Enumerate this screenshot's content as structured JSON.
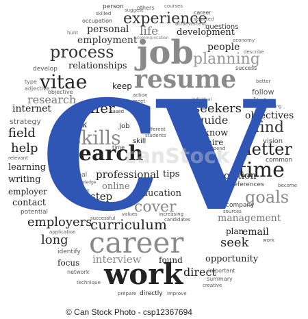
{
  "cv": "CV",
  "words": {
    "person": "person",
    "others": "others",
    "courses": "courses",
    "skilled": "skilled",
    "suggest": "suggest",
    "career_sm": "career",
    "selected": "selected",
    "occupation": "occupation",
    "experience": "experience",
    "life": "life",
    "achievement": "achievement",
    "development": "development",
    "questions": "questions",
    "personal": "personal",
    "employment": "employment",
    "hunt": "hunt",
    "communication": "communication",
    "people": "people",
    "economy": "economy",
    "process": "process",
    "job": "job",
    "planning": "planning",
    "describe": "describe",
    "develop": "develop",
    "relationships": "relationships",
    "success": "success",
    "vitae": "vitae",
    "resume": "resume",
    "keep": "keep",
    "type": "type",
    "adjective": "adjective",
    "objective": "objective",
    "objectives_sm": "objectives",
    "follow": "follow",
    "better": "better",
    "research": "research",
    "internet": "internet",
    "list": "list",
    "strategy": "strategy",
    "action": "action",
    "meet": "meet",
    "individual": "individual",
    "interviewing": "interviewing",
    "offer": "offer",
    "seekers": "seekers",
    "objectives": "objectives",
    "field": "field",
    "talk": "talk",
    "skills": "skills",
    "guide": "guide",
    "find": "find",
    "hiring_sm": "hiring",
    "different": "different",
    "students": "students",
    "vision": "vision",
    "help": "help",
    "search": "search",
    "know": "know",
    "letter": "letter",
    "hire": "hire",
    "relevant": "relevant",
    "learning": "learning",
    "time": "time",
    "professional": "professional",
    "tips": "tips",
    "common": "common",
    "writing": "writing",
    "goal": "goal",
    "employer": "employer",
    "online": "online",
    "position": "position",
    "goals": "goals",
    "contact": "contact",
    "cover": "cover",
    "education": "education",
    "company": "company",
    "potential": "potential",
    "employers": "employers",
    "curriculum": "curriculum",
    "management": "management",
    "long": "long",
    "career": "career",
    "email": "email",
    "plan": "plan",
    "seek": "seek",
    "identify": "identify",
    "interview": "interview",
    "found": "found",
    "focus": "focus",
    "opportunity": "opportunity",
    "network": "network",
    "work": "work",
    "direct": "direct",
    "important": "important",
    "summary": "summary",
    "creative": "creative",
    "directly": "directly",
    "improve": "improve",
    "prepare": "prepare",
    "technique": "technique",
    "step": "step",
    "references": "references",
    "become": "become",
    "sources": "sources",
    "values": "values",
    "increasing": "increasing",
    "candidates": "candidates",
    "application": "application",
    "successful": "successful",
    "skill": "skill",
    "based": "based",
    "using": "using",
    "learn": "learn",
    "spend": "spend",
    "knowledge": "knowledge",
    "suit": "suit"
  },
  "watermark": "canStock",
  "footer": {
    "credit": "© Can Stock Photo - csp12367694"
  }
}
